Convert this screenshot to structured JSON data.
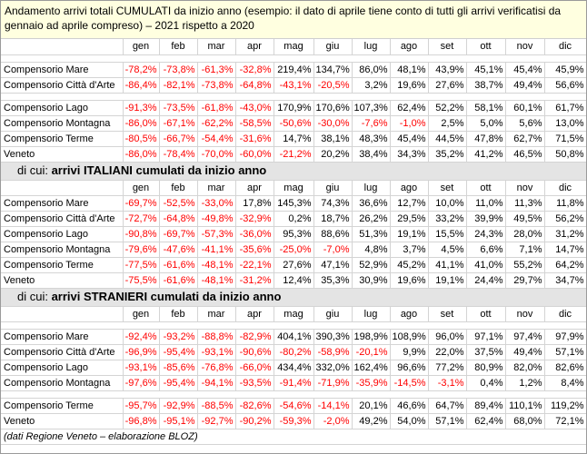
{
  "title": "Andamento arrivi totali CUMULATI da inizio anno (esempio: il dato di aprile tiene conto di tutti gli arrivi verificatisi da gennaio ad aprile compreso) – 2021 rispetto a 2020",
  "months": [
    "gen",
    "feb",
    "mar",
    "apr",
    "mag",
    "giu",
    "lug",
    "ago",
    "set",
    "ott",
    "nov",
    "dic"
  ],
  "colors": {
    "negative": "#ff0000",
    "title_bg": "#ffffe0",
    "section_bg": "#e4e4e4"
  },
  "sections": [
    {
      "heading_prefix": "",
      "heading_bold": "",
      "rows": [
        {
          "label": "Compensorio Mare",
          "values": [
            "-78,2%",
            "-73,8%",
            "-61,3%",
            "-32,8%",
            "219,4%",
            "134,7%",
            "86,0%",
            "48,1%",
            "43,9%",
            "45,1%",
            "45,4%",
            "45,9%"
          ],
          "gap_after": false
        },
        {
          "label": "Compensorio Città d'Arte",
          "values": [
            "-86,4%",
            "-82,1%",
            "-73,8%",
            "-64,8%",
            "-43,1%",
            "-20,5%",
            "3,2%",
            "19,6%",
            "27,6%",
            "38,7%",
            "49,4%",
            "56,6%"
          ],
          "gap_after": true
        },
        {
          "label": "Compensorio Lago",
          "values": [
            "-91,3%",
            "-73,5%",
            "-61,8%",
            "-43,0%",
            "170,9%",
            "170,6%",
            "107,3%",
            "62,4%",
            "52,2%",
            "58,1%",
            "60,1%",
            "61,7%"
          ],
          "gap_after": false
        },
        {
          "label": "Compensorio Montagna",
          "values": [
            "-86,0%",
            "-67,1%",
            "-62,2%",
            "-58,5%",
            "-50,6%",
            "-30,0%",
            "-7,6%",
            "-1,0%",
            "2,5%",
            "5,0%",
            "5,6%",
            "13,0%"
          ],
          "gap_after": false
        },
        {
          "label": "Compensorio Terme",
          "values": [
            "-80,5%",
            "-66,7%",
            "-54,4%",
            "-31,6%",
            "14,7%",
            "38,1%",
            "48,3%",
            "45,4%",
            "44,5%",
            "47,8%",
            "62,7%",
            "71,5%"
          ],
          "gap_after": false
        },
        {
          "label": "Veneto",
          "values": [
            "-86,0%",
            "-78,4%",
            "-70,0%",
            "-60,0%",
            "-21,2%",
            "20,2%",
            "38,4%",
            "34,3%",
            "35,2%",
            "41,2%",
            "46,5%",
            "50,8%"
          ],
          "gap_after": false
        }
      ]
    },
    {
      "heading_prefix": "di cui: ",
      "heading_bold": "arrivi ITALIANI cumulati da inizio anno",
      "rows": [
        {
          "label": "Compensorio Mare",
          "values": [
            "-69,7%",
            "-52,5%",
            "-33,0%",
            "17,8%",
            "145,3%",
            "74,3%",
            "36,6%",
            "12,7%",
            "10,0%",
            "11,0%",
            "11,3%",
            "11,8%"
          ],
          "gap_after": false
        },
        {
          "label": "Compensorio Città d'Arte",
          "values": [
            "-72,7%",
            "-64,8%",
            "-49,8%",
            "-32,9%",
            "0,2%",
            "18,7%",
            "26,2%",
            "29,5%",
            "33,2%",
            "39,9%",
            "49,5%",
            "56,2%"
          ],
          "gap_after": false
        },
        {
          "label": "Compensorio Lago",
          "values": [
            "-90,8%",
            "-69,7%",
            "-57,3%",
            "-36,0%",
            "95,3%",
            "88,6%",
            "51,3%",
            "19,1%",
            "15,5%",
            "24,3%",
            "28,0%",
            "31,2%"
          ],
          "gap_after": false
        },
        {
          "label": "Compensorio Montagna",
          "values": [
            "-79,6%",
            "-47,6%",
            "-41,1%",
            "-35,6%",
            "-25,0%",
            "-7,0%",
            "4,8%",
            "3,7%",
            "4,5%",
            "6,6%",
            "7,1%",
            "14,7%"
          ],
          "gap_after": false
        },
        {
          "label": "Compensorio Terme",
          "values": [
            "-77,5%",
            "-61,6%",
            "-48,1%",
            "-22,1%",
            "27,6%",
            "47,1%",
            "52,9%",
            "45,2%",
            "41,1%",
            "41,0%",
            "55,2%",
            "64,2%"
          ],
          "gap_after": false
        },
        {
          "label": "Veneto",
          "values": [
            "-75,5%",
            "-61,6%",
            "-48,1%",
            "-31,2%",
            "12,4%",
            "35,3%",
            "30,9%",
            "19,6%",
            "19,1%",
            "24,4%",
            "29,7%",
            "34,7%"
          ],
          "gap_after": false
        }
      ]
    },
    {
      "heading_prefix": "di cui: ",
      "heading_bold": "arrivi STRANIERI cumulati da inizio anno",
      "rows": [
        {
          "label": "Compensorio Mare",
          "values": [
            "-92,4%",
            "-93,2%",
            "-88,8%",
            "-82,9%",
            "404,1%",
            "390,3%",
            "198,9%",
            "108,9%",
            "96,0%",
            "97,1%",
            "97,4%",
            "97,9%"
          ],
          "gap_after": false
        },
        {
          "label": "Compensorio Città d'Arte",
          "values": [
            "-96,9%",
            "-95,4%",
            "-93,1%",
            "-90,6%",
            "-80,2%",
            "-58,9%",
            "-20,1%",
            "9,9%",
            "22,0%",
            "37,5%",
            "49,4%",
            "57,1%"
          ],
          "gap_after": false
        },
        {
          "label": "Compensorio Lago",
          "values": [
            "-93,1%",
            "-85,6%",
            "-76,8%",
            "-66,0%",
            "434,4%",
            "332,0%",
            "162,4%",
            "96,6%",
            "77,2%",
            "80,9%",
            "82,0%",
            "82,6%"
          ],
          "gap_after": false
        },
        {
          "label": "Compensorio Montagna",
          "values": [
            "-97,6%",
            "-95,4%",
            "-94,1%",
            "-93,5%",
            "-91,4%",
            "-71,9%",
            "-35,9%",
            "-14,5%",
            "-3,1%",
            "0,4%",
            "1,2%",
            "8,4%"
          ],
          "gap_after": true
        },
        {
          "label": "Compensorio Terme",
          "values": [
            "-95,7%",
            "-92,9%",
            "-88,5%",
            "-82,6%",
            "-54,6%",
            "-14,1%",
            "20,1%",
            "46,6%",
            "64,7%",
            "89,4%",
            "110,1%",
            "119,2%"
          ],
          "gap_after": false
        },
        {
          "label": "Veneto",
          "values": [
            "-96,8%",
            "-95,1%",
            "-92,7%",
            "-90,2%",
            "-59,3%",
            "-2,0%",
            "49,2%",
            "54,0%",
            "57,1%",
            "62,4%",
            "68,0%",
            "72,1%"
          ],
          "gap_after": false
        }
      ]
    }
  ],
  "footer": "(dati Regione Veneto – elaborazione BLOZ)"
}
